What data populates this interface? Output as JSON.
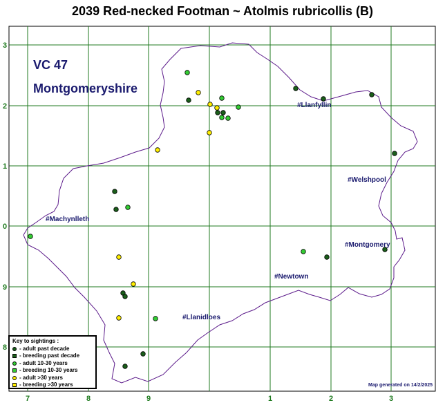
{
  "title": "2039 Red-necked Footman ~ Atolmis rubricollis (B)",
  "region": {
    "code": "VC 47",
    "name": "Montgomeryshire"
  },
  "axes": {
    "x_labels": [
      "7",
      "8",
      "9",
      "1",
      "2",
      "3"
    ],
    "y_labels": [
      "3",
      "2",
      "1",
      "0",
      "9",
      "8"
    ]
  },
  "towns": [
    "#Llanfyllin",
    "#Welshpool",
    "#Machynlleth",
    "#Montgomery",
    "#Newtown",
    "#Llanidloes"
  ],
  "key": {
    "title": "Key to sightings :",
    "items": [
      {
        "label": "- adult past decade",
        "shape": "circle",
        "color": "#1a5e1a"
      },
      {
        "label": "- breeding past decade",
        "shape": "square",
        "color": "#1a5e1a"
      },
      {
        "label": "- adult 10-30 years",
        "shape": "circle",
        "color": "#33cc33"
      },
      {
        "label": "- breeding 10-30 years",
        "shape": "square",
        "color": "#33cc33"
      },
      {
        "label": "- adult >30 years",
        "shape": "circle",
        "color": "#ffee00"
      },
      {
        "label": "- breeding >30 years",
        "shape": "square",
        "color": "#ffee00"
      }
    ]
  },
  "credit": "Map generated on 14/2/2025",
  "colors": {
    "grid": "#1f7a1f",
    "boundary": "#5b1a8a",
    "label": "#1a1a6e",
    "adult_past_decade": "#1a5e1a",
    "adult_10_30": "#33cc33",
    "adult_over_30": "#ffee00"
  }
}
